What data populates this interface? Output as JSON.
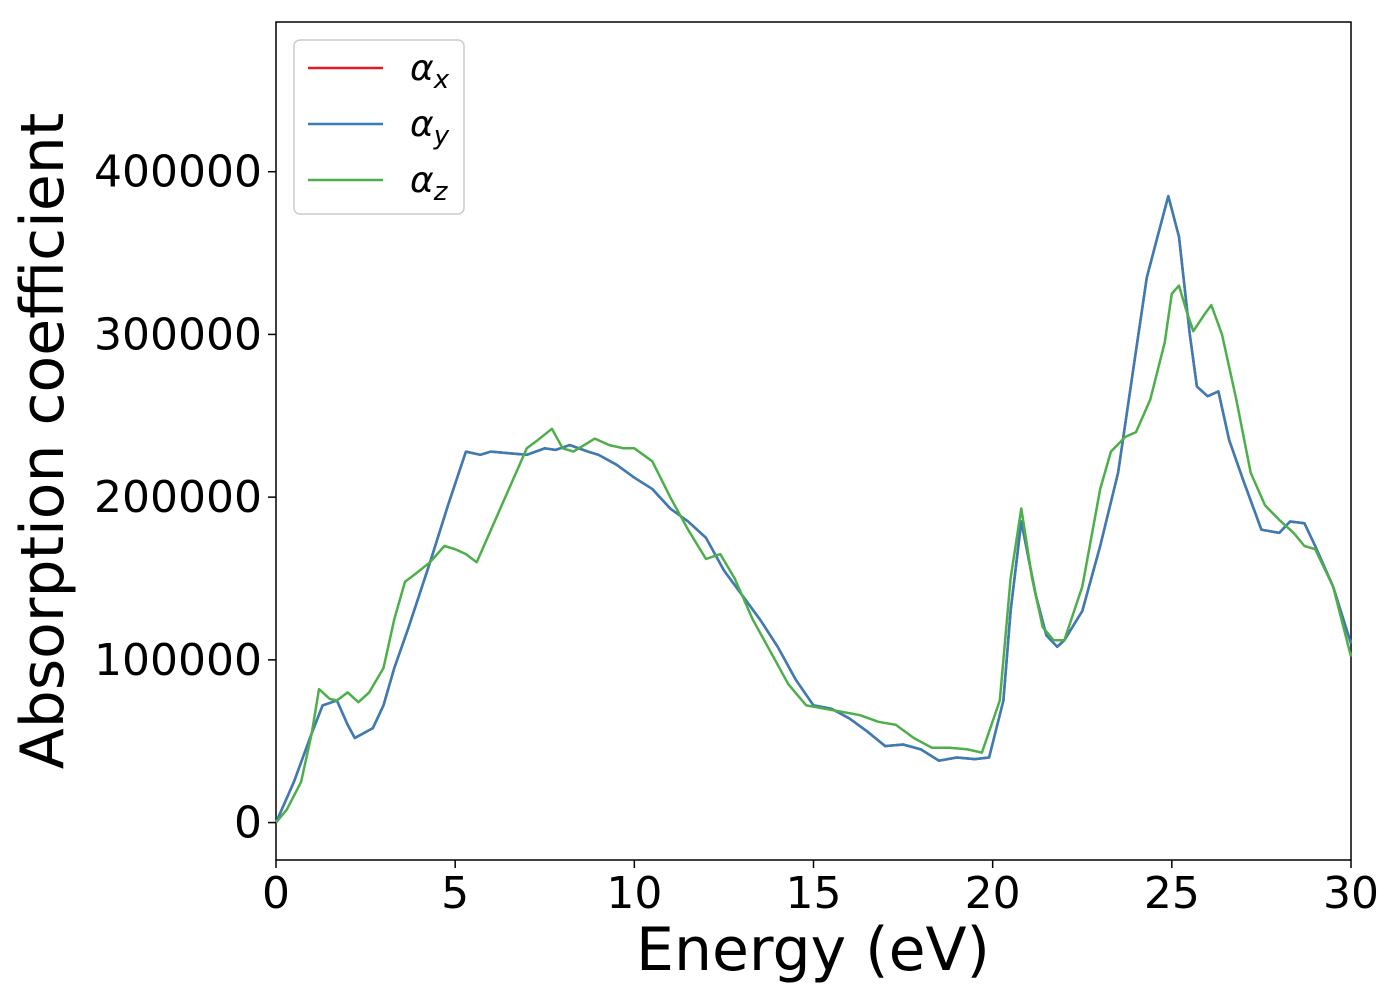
{
  "chart_data": {
    "type": "line",
    "title": "",
    "xlabel": "Energy (eV)",
    "ylabel": "Absorption coefficient",
    "xlim": [
      0,
      30
    ],
    "ylim": [
      -23000,
      492000
    ],
    "xticks": [
      0,
      5,
      10,
      15,
      20,
      25,
      30
    ],
    "yticks": [
      0,
      100000,
      200000,
      300000,
      400000
    ],
    "grid": false,
    "legend": {
      "placement": "top-left",
      "entries": [
        {
          "base": "α",
          "sub": "x"
        },
        {
          "base": "α",
          "sub": "y"
        },
        {
          "base": "α",
          "sub": "z"
        }
      ]
    },
    "colors": [
      "#e41a1c",
      "#377eb8",
      "#4daf4a"
    ],
    "series": [
      {
        "key": "x",
        "x": [
          0,
          0.5,
          1.0,
          1.3,
          1.7,
          2.0,
          2.2,
          2.7,
          3.0,
          3.3,
          3.7,
          4.3,
          4.8,
          5.3,
          5.7,
          6.0,
          6.5,
          7.0,
          7.5,
          7.8,
          8.2,
          8.7,
          9.0,
          9.5,
          10.0,
          10.5,
          11.0,
          11.5,
          12.0,
          12.5,
          13.0,
          13.5,
          14.0,
          14.5,
          15.0,
          15.5,
          16.0,
          16.5,
          17.0,
          17.5,
          18.0,
          18.5,
          19.0,
          19.5,
          19.9,
          20.3,
          20.5,
          20.8,
          21.2,
          21.5,
          21.8,
          22.0,
          22.5,
          23.0,
          23.5,
          24.0,
          24.3,
          24.6,
          24.9,
          25.2,
          25.5,
          25.7,
          26.0,
          26.3,
          26.6,
          27.0,
          27.5,
          28.0,
          28.3,
          28.7,
          29.0,
          29.5,
          30.0
        ],
        "y": [
          0,
          25000,
          55000,
          72000,
          75000,
          60000,
          52000,
          58000,
          72000,
          95000,
          120000,
          160000,
          195000,
          228000,
          226000,
          228000,
          227000,
          226000,
          230000,
          229000,
          232000,
          228000,
          226000,
          220000,
          212000,
          205000,
          193000,
          185000,
          175000,
          155000,
          140000,
          125000,
          108000,
          88000,
          72000,
          70000,
          64000,
          56000,
          47000,
          48000,
          45000,
          38000,
          40000,
          39000,
          40000,
          75000,
          130000,
          185000,
          140000,
          115000,
          108000,
          112000,
          130000,
          170000,
          215000,
          290000,
          335000,
          360000,
          385000,
          360000,
          300000,
          268000,
          262000,
          265000,
          235000,
          210000,
          180000,
          178000,
          185000,
          184000,
          170000,
          145000,
          110000
        ]
      },
      {
        "key": "y",
        "x": [
          0,
          0.5,
          1.0,
          1.3,
          1.7,
          2.0,
          2.2,
          2.7,
          3.0,
          3.3,
          3.7,
          4.3,
          4.8,
          5.3,
          5.7,
          6.0,
          6.5,
          7.0,
          7.5,
          7.8,
          8.2,
          8.7,
          9.0,
          9.5,
          10.0,
          10.5,
          11.0,
          11.5,
          12.0,
          12.5,
          13.0,
          13.5,
          14.0,
          14.5,
          15.0,
          15.5,
          16.0,
          16.5,
          17.0,
          17.5,
          18.0,
          18.5,
          19.0,
          19.5,
          19.9,
          20.3,
          20.5,
          20.8,
          21.2,
          21.5,
          21.8,
          22.0,
          22.5,
          23.0,
          23.5,
          24.0,
          24.3,
          24.6,
          24.9,
          25.2,
          25.5,
          25.7,
          26.0,
          26.3,
          26.6,
          27.0,
          27.5,
          28.0,
          28.3,
          28.7,
          29.0,
          29.5,
          30.0
        ],
        "y": [
          0,
          25000,
          55000,
          72000,
          75000,
          60000,
          52000,
          58000,
          72000,
          95000,
          120000,
          160000,
          195000,
          228000,
          226000,
          228000,
          227000,
          226000,
          230000,
          229000,
          232000,
          228000,
          226000,
          220000,
          212000,
          205000,
          193000,
          185000,
          175000,
          155000,
          140000,
          125000,
          108000,
          88000,
          72000,
          70000,
          64000,
          56000,
          47000,
          48000,
          45000,
          38000,
          40000,
          39000,
          40000,
          75000,
          130000,
          185000,
          140000,
          115000,
          108000,
          112000,
          130000,
          170000,
          215000,
          290000,
          335000,
          360000,
          385000,
          360000,
          300000,
          268000,
          262000,
          265000,
          235000,
          210000,
          180000,
          178000,
          185000,
          184000,
          170000,
          145000,
          110000
        ]
      },
      {
        "key": "z",
        "x": [
          0,
          0.3,
          0.7,
          1.0,
          1.2,
          1.5,
          1.7,
          2.0,
          2.3,
          2.6,
          3.0,
          3.3,
          3.6,
          3.9,
          4.3,
          4.7,
          5.0,
          5.3,
          5.6,
          6.0,
          6.5,
          7.0,
          7.3,
          7.7,
          8.0,
          8.3,
          8.6,
          8.9,
          9.3,
          9.7,
          10.0,
          10.5,
          11.0,
          11.5,
          12.0,
          12.4,
          12.8,
          13.3,
          13.8,
          14.3,
          14.8,
          15.3,
          15.8,
          16.3,
          16.8,
          17.3,
          17.8,
          18.3,
          18.8,
          19.3,
          19.7,
          20.2,
          20.5,
          20.8,
          21.1,
          21.4,
          21.7,
          22.0,
          22.5,
          23.0,
          23.3,
          23.7,
          24.0,
          24.4,
          24.8,
          25.0,
          25.2,
          25.4,
          25.6,
          25.9,
          26.1,
          26.4,
          26.8,
          27.2,
          27.6,
          28.0,
          28.4,
          28.7,
          29.0,
          29.5,
          30.0
        ],
        "y": [
          0,
          8000,
          25000,
          55000,
          82000,
          76000,
          75000,
          80000,
          74000,
          80000,
          95000,
          125000,
          148000,
          153000,
          160000,
          170000,
          168000,
          165000,
          160000,
          180000,
          205000,
          230000,
          235000,
          242000,
          230000,
          228000,
          232000,
          236000,
          232000,
          230000,
          230000,
          222000,
          200000,
          180000,
          162000,
          165000,
          150000,
          125000,
          105000,
          85000,
          72000,
          70000,
          68000,
          66000,
          62000,
          60000,
          52000,
          46000,
          46000,
          45000,
          43000,
          75000,
          150000,
          193000,
          150000,
          120000,
          112000,
          112000,
          145000,
          205000,
          228000,
          237000,
          240000,
          260000,
          295000,
          325000,
          330000,
          315000,
          302000,
          312000,
          318000,
          300000,
          260000,
          215000,
          195000,
          186000,
          178000,
          170000,
          168000,
          145000,
          102000
        ]
      }
    ]
  }
}
